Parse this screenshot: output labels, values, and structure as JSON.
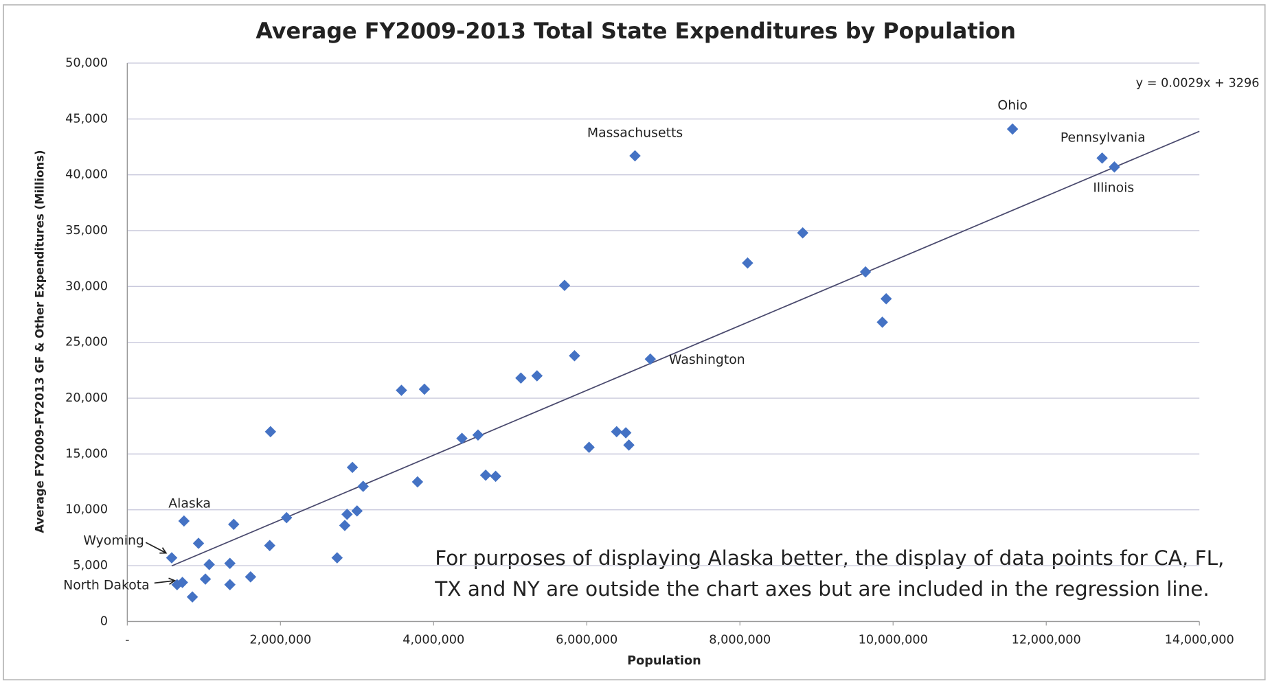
{
  "chart_data": {
    "type": "scatter",
    "title": "Average FY2009-2013 Total State Expenditures by Population",
    "x_label": "Population",
    "y_label": "Average FY2009-FY2013 GF & Other Expenditures (Millions)",
    "color": "#4472c4",
    "grid": true,
    "xlim": [
      0,
      14000000
    ],
    "ylim": [
      0,
      50000
    ],
    "xticks": [
      {
        "value": 0,
        "label": "-"
      },
      {
        "value": 2000000,
        "label": "2,000,000"
      },
      {
        "value": 4000000,
        "label": "4,000,000"
      },
      {
        "value": 6000000,
        "label": "6,000,000"
      },
      {
        "value": 8000000,
        "label": "8,000,000"
      },
      {
        "value": 10000000,
        "label": "10,000,000"
      },
      {
        "value": 12000000,
        "label": "12,000,000"
      },
      {
        "value": 14000000,
        "label": "14,000,000"
      }
    ],
    "yticks": [
      0,
      {
        "value": 5000,
        "label": "5,000"
      },
      {
        "value": 10000,
        "label": "10,000"
      },
      {
        "value": 15000,
        "label": "15,000"
      },
      {
        "value": 20000,
        "label": "20,000"
      },
      {
        "value": 25000,
        "label": "25,000"
      },
      {
        "value": 30000,
        "label": "30,000"
      },
      {
        "value": 35000,
        "label": "35,000"
      },
      {
        "value": 40000,
        "label": "40,000"
      },
      {
        "value": 45000,
        "label": "45,000"
      },
      {
        "value": 50000,
        "label": "50,000"
      }
    ],
    "x": [
      580000,
      650000,
      720000,
      740000,
      850000,
      930000,
      1020000,
      1070000,
      1340000,
      1340000,
      1390000,
      1610000,
      1860000,
      1870000,
      2080000,
      2740000,
      2840000,
      2870000,
      2940000,
      3000000,
      3080000,
      3580000,
      3790000,
      3880000,
      4370000,
      4580000,
      4680000,
      4810000,
      5140000,
      5350000,
      5710000,
      5840000,
      6030000,
      6390000,
      6510000,
      6550000,
      6630000,
      6830000,
      8100000,
      8820000,
      9640000,
      9860000,
      9910000,
      11560000,
      12730000,
      12890000
    ],
    "values": [
      5700,
      3300,
      3500,
      9000,
      2200,
      7000,
      3800,
      5100,
      5200,
      3300,
      8700,
      4000,
      6800,
      17000,
      9300,
      5700,
      8600,
      9600,
      13800,
      9900,
      12100,
      20700,
      12500,
      20800,
      16400,
      16700,
      13100,
      13000,
      21800,
      22000,
      30100,
      23800,
      15600,
      17000,
      16900,
      15800,
      41700,
      23500,
      32100,
      34800,
      31300,
      26800,
      28900,
      44100,
      41500,
      40700
    ],
    "point_labels": [
      "Wyoming",
      "North Dakota",
      null,
      "Alaska",
      null,
      null,
      null,
      null,
      null,
      null,
      null,
      null,
      null,
      null,
      null,
      null,
      null,
      null,
      null,
      null,
      null,
      null,
      null,
      null,
      null,
      null,
      null,
      null,
      null,
      null,
      null,
      null,
      null,
      null,
      null,
      null,
      "Massachusetts",
      "Washington",
      null,
      null,
      null,
      null,
      null,
      "Ohio",
      "Pennsylvania",
      "Illinois"
    ],
    "trendline": {
      "label": "y = 0.0029x + 3296",
      "slope": 0.0029,
      "intercept": 3296,
      "x_range": [
        580000,
        14000000
      ]
    },
    "note": [
      "For purposes of displaying Alaska better, the display of data points for CA, FL,",
      "TX and NY are outside the chart axes but are included in the regression line."
    ]
  }
}
